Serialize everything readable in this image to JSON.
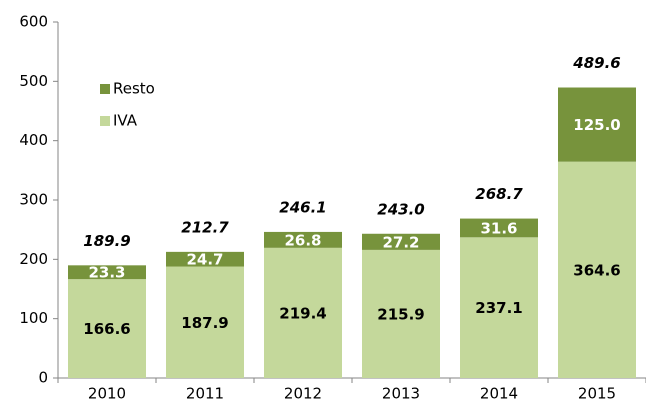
{
  "chart_data": {
    "type": "stacked_bar",
    "categories": [
      "2010",
      "2011",
      "2012",
      "2013",
      "2014",
      "2015"
    ],
    "series": [
      {
        "name": "IVA",
        "color": "#c4d89b",
        "values": [
          166.6,
          187.9,
          219.4,
          215.9,
          237.1,
          364.6
        ]
      },
      {
        "name": "Resto",
        "color": "#77933c",
        "values": [
          23.3,
          24.7,
          26.8,
          27.2,
          31.6,
          125.0
        ],
        "value_labels": [
          "23.3",
          "24.7",
          "26.8",
          "27.2",
          "31.6",
          "125.0"
        ]
      }
    ],
    "totals": [
      189.9,
      212.7,
      246.1,
      243.0,
      268.7,
      489.6
    ],
    "totals_labels": [
      "189.9",
      "212.7",
      "246.1",
      "243.0",
      "268.7",
      "489.6"
    ],
    "ylim": [
      0,
      600
    ],
    "yticks": [
      0,
      100,
      200,
      300,
      400,
      500,
      600
    ],
    "grid": false
  }
}
